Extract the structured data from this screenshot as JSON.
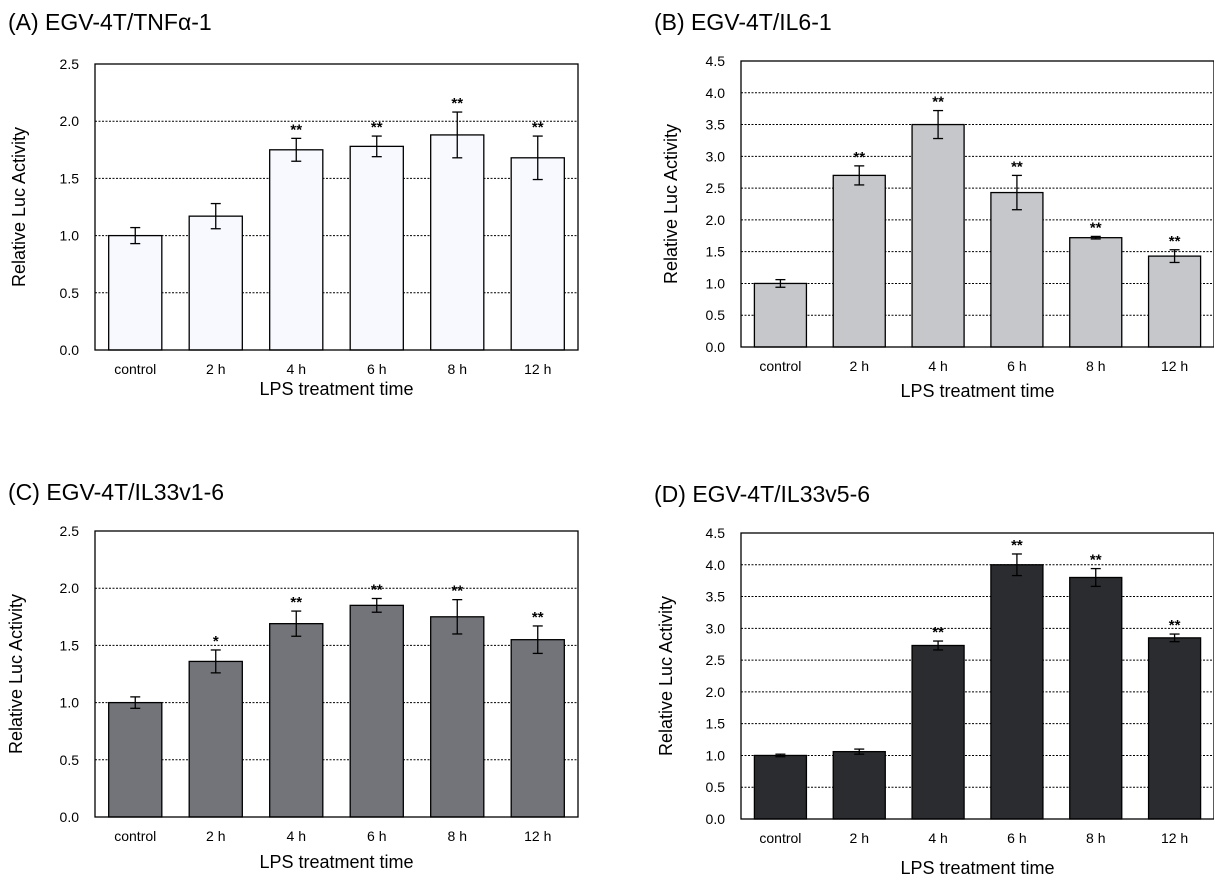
{
  "chart_data": [
    {
      "type": "bar",
      "title": "(A) EGV-4T/TNFα-1",
      "xlabel": "LPS treatment time",
      "ylabel": "Relative Luc  Activity",
      "categories": [
        "control",
        "2 h",
        "4 h",
        "6 h",
        "8 h",
        "12 h"
      ],
      "values": [
        1.0,
        1.17,
        1.75,
        1.78,
        1.88,
        1.68
      ],
      "errors": [
        0.07,
        0.11,
        0.1,
        0.09,
        0.2,
        0.19
      ],
      "significance": [
        "",
        "",
        "**",
        "**",
        "**",
        "**"
      ],
      "ylim": [
        0,
        2.5
      ],
      "yticks": [
        "0.0",
        "0.5",
        "1.0",
        "1.5",
        "2.0",
        "2.5"
      ],
      "bar_color": "#f7f9ff",
      "grid": true
    },
    {
      "type": "bar",
      "title": "(B) EGV-4T/IL6-1",
      "xlabel": "LPS treatment time",
      "ylabel": "Relative Luc  Activity",
      "categories": [
        "control",
        "2 h",
        "4 h",
        "6 h",
        "8 h",
        "12 h"
      ],
      "values": [
        1.0,
        2.7,
        3.5,
        2.43,
        1.72,
        1.43
      ],
      "errors": [
        0.06,
        0.15,
        0.22,
        0.27,
        0.02,
        0.1
      ],
      "significance": [
        "",
        "**",
        "**",
        "**",
        "**",
        "**"
      ],
      "ylim": [
        0,
        4.5
      ],
      "yticks": [
        "0.0",
        "0.5",
        "1.0",
        "1.5",
        "2.0",
        "2.5",
        "3.0",
        "3.5",
        "4.0",
        "4.5"
      ],
      "bar_color": "#c6c7ca",
      "grid": true
    },
    {
      "type": "bar",
      "title": "(C) EGV-4T/IL33v1-6",
      "xlabel": "LPS treatment time",
      "ylabel": "Relative Luc  Activity",
      "categories": [
        "control",
        "2 h",
        "4 h",
        "6 h",
        "8 h",
        "12 h"
      ],
      "values": [
        1.0,
        1.36,
        1.69,
        1.85,
        1.75,
        1.55
      ],
      "errors": [
        0.05,
        0.1,
        0.11,
        0.06,
        0.15,
        0.12
      ],
      "significance": [
        "",
        "*",
        "**",
        "**",
        "**",
        "**"
      ],
      "ylim": [
        0,
        2.5
      ],
      "yticks": [
        "0.0",
        "0.5",
        "1.0",
        "1.5",
        "2.0",
        "2.5"
      ],
      "bar_color": "#727479",
      "grid": true
    },
    {
      "type": "bar",
      "title": "(D) EGV-4T/IL33v5-6",
      "xlabel": "LPS treatment time",
      "ylabel": "Relative Luc  Activity",
      "categories": [
        "control",
        "2 h",
        "4 h",
        "6 h",
        "8 h",
        "12 h"
      ],
      "values": [
        1.0,
        1.06,
        2.73,
        4.0,
        3.8,
        2.85
      ],
      "errors": [
        0.02,
        0.04,
        0.07,
        0.17,
        0.14,
        0.06
      ],
      "significance": [
        "",
        "",
        "**",
        "**",
        "**",
        "**"
      ],
      "ylim": [
        0,
        4.5
      ],
      "yticks": [
        "0.0",
        "0.5",
        "1.0",
        "1.5",
        "2.0",
        "2.5",
        "3.0",
        "3.5",
        "4.0",
        "4.5"
      ],
      "bar_color": "#2b2c2f",
      "grid": true
    }
  ]
}
